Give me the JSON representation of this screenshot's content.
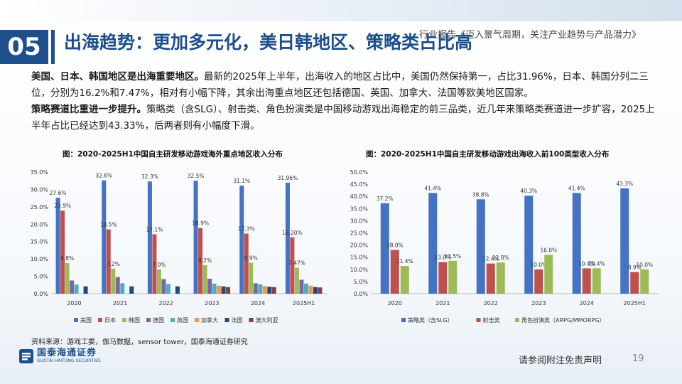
{
  "header": {
    "report_title": "行业报告《迈入景气周期，关注产业趋势与产品潜力》"
  },
  "section": {
    "number": "05",
    "title": "出海趋势：更加多元化，美日韩地区、策略类占比高"
  },
  "body": {
    "p1_bold": "美国、日本、韩国地区是出海重要地区。",
    "p1_text": "最新的2025年上半年，出海收入的地区占比中，美国仍然保持第一，占比31.96%，日本、韩国分列二三位，分别为16.2%和7.47%，相对有小幅下降，其余出海重点地区还包括德国、英国、加拿大、法国等欧美地区国家。",
    "p2_bold": "策略赛道比重进一步提升。",
    "p2_text": "策略类（含SLG）、射击类、角色扮演类是中国移动游戏出海稳定的前三品类，近几年来策略类赛道进一步扩容，2025上半年占比已经达到43.33%，后两者则有小幅度下滑。"
  },
  "colors": {
    "brand": "#1c4f8c",
    "series": [
      "#4472c4",
      "#c0504d",
      "#9bbb59",
      "#8064a2",
      "#4bacc6",
      "#f79646",
      "#1f497d",
      "#7f3f3f"
    ]
  },
  "chart_data": [
    {
      "type": "bar",
      "title": "图：2020-2025H1中国自主研发移动游戏海外重点地区收入分布",
      "categories": [
        "2020",
        "2021",
        "2022",
        "2023",
        "2024",
        "2025H1"
      ],
      "ylim": [
        0,
        35
      ],
      "yticks": [
        "0.0%",
        "5.0%",
        "10.0%",
        "15.0%",
        "20.0%",
        "25.0%",
        "30.0%",
        "35.0%"
      ],
      "legend_position": "bottom",
      "grid": false,
      "series": [
        {
          "name": "美国",
          "values": [
            27.6,
            32.6,
            32.3,
            32.5,
            31.1,
            31.96
          ],
          "labels": [
            "27.6%",
            "32.6%",
            "32.3%",
            "32.5%",
            "31.1%",
            "31.96%"
          ]
        },
        {
          "name": "日本",
          "values": [
            23.9,
            18.5,
            17.1,
            18.9,
            17.3,
            16.2
          ],
          "labels": [
            "23.9%",
            "18.5%",
            "17.1%",
            "18.9%",
            "17.3%",
            "16.20%"
          ]
        },
        {
          "name": "韩国",
          "values": [
            8.8,
            7.2,
            7.0,
            8.2,
            8.9,
            7.47
          ],
          "labels": [
            "8.8%",
            "7.2%",
            "7.0%",
            "8.2%",
            "8.9%",
            "7.47%"
          ]
        },
        {
          "name": "德国",
          "values": [
            3.8,
            4.8,
            4.2,
            4.3,
            3.0,
            4.0
          ],
          "labels": []
        },
        {
          "name": "英国",
          "values": [
            2.6,
            3.0,
            2.8,
            2.9,
            2.7,
            2.9
          ],
          "labels": []
        },
        {
          "name": "加拿大",
          "values": [
            0,
            0,
            0,
            2.3,
            2.2,
            2.3
          ],
          "labels": []
        },
        {
          "name": "法国",
          "values": [
            2.1,
            2.1,
            2.1,
            2.1,
            2.0,
            1.9
          ],
          "labels": []
        },
        {
          "name": "澳大利亚",
          "values": [
            0,
            0,
            0,
            1.9,
            1.9,
            1.8
          ],
          "labels": []
        }
      ]
    },
    {
      "type": "bar",
      "title": "图：2020-2025H1中国自主研发移动游戏出海收入前100类型收入分布",
      "categories": [
        "2020",
        "2021",
        "2022",
        "2023",
        "2024",
        "2025H1"
      ],
      "ylim": [
        0,
        50
      ],
      "yticks": [
        "0.0%",
        "5.0%",
        "10.0%",
        "15.0%",
        "20.0%",
        "25.0%",
        "30.0%",
        "35.0%",
        "40.0%",
        "45.0%",
        "50.0%"
      ],
      "legend_position": "bottom",
      "grid": false,
      "series": [
        {
          "name": "策略类（含SLG）",
          "values": [
            37.2,
            41.4,
            38.8,
            40.3,
            41.4,
            43.3
          ],
          "labels": [
            "37.2%",
            "41.4%",
            "38.8%",
            "40.3%",
            "41.4%",
            "43.3%"
          ]
        },
        {
          "name": "射击类",
          "values": [
            18.0,
            13.0,
            12.4,
            10.0,
            10.4,
            8.9
          ],
          "labels": [
            "18.0%",
            "13.0%",
            "12.4%",
            "10.0%",
            "10.4%",
            "8.9%"
          ]
        },
        {
          "name": "角色扮演类（ARPG/MMORPG）",
          "values": [
            11.4,
            13.5,
            12.8,
            16.0,
            10.4,
            10.0
          ],
          "labels": [
            "11.4%",
            "13.5%",
            "12.8%",
            "16.0%",
            "10.4%",
            "10.0%"
          ]
        }
      ]
    }
  ],
  "footer": {
    "source": "资料来源：游戏工委，伽马数据，sensor tower，国泰海通证券研究",
    "logo_cn": "国泰海通证券",
    "logo_en": "GUOTAI HAITONG SECURITIES",
    "disclaimer": "请参阅附注免责声明",
    "page_number": "19"
  }
}
